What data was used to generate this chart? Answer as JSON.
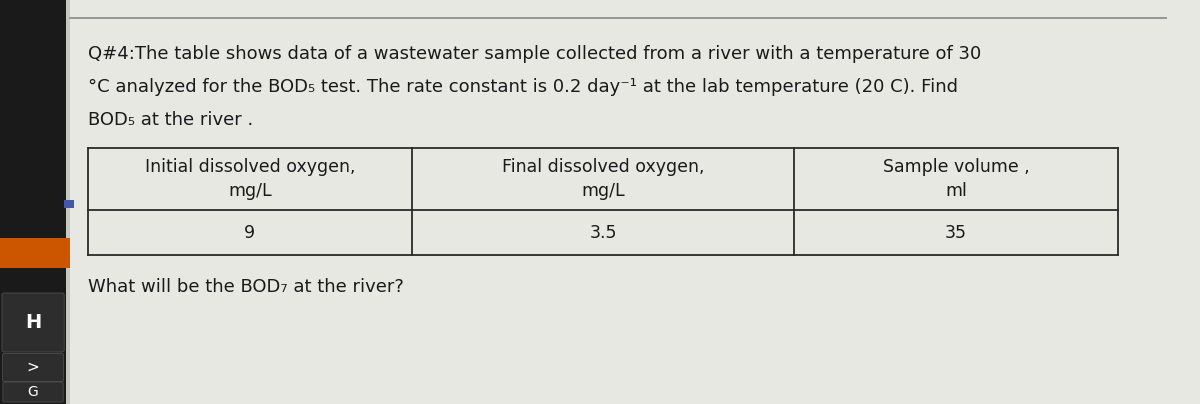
{
  "title_line1": "Q#4:The table shows data of a wastewater sample collected from a river with a temperature of 30",
  "title_line2": "°C analyzed for the BOD₅ test. The rate constant is 0.2 day⁻¹ at the lab temperature (20 C). Find",
  "title_line3": "BOD₅ at the river .",
  "col_headers": [
    "Initial dissolved oxygen,\nmg/L",
    "Final dissolved oxygen,\nmg/L",
    "Sample volume ,\nml"
  ],
  "row_data": [
    "9",
    "3.5",
    "35"
  ],
  "question": "What will be the BOD₇ at the river?",
  "paper_color": "#e8e8e3",
  "text_color": "#1a1a1a",
  "table_line_color": "#2a2a2a",
  "font_size_title": 13.0,
  "font_size_table": 12.5,
  "font_size_question": 13.0,
  "keyboard_bg": "#1a1a1a",
  "key_H_color": "#2a2a2a",
  "key_arrow_color": "#2a2a2a",
  "key_G_color": "#2a2a2a",
  "orange_strip_color": "#cc5500",
  "left_bar_color": "#d0cfc8",
  "sidebar_labels": [
    "H",
    ">",
    "G"
  ],
  "top_line_color": "#888888"
}
